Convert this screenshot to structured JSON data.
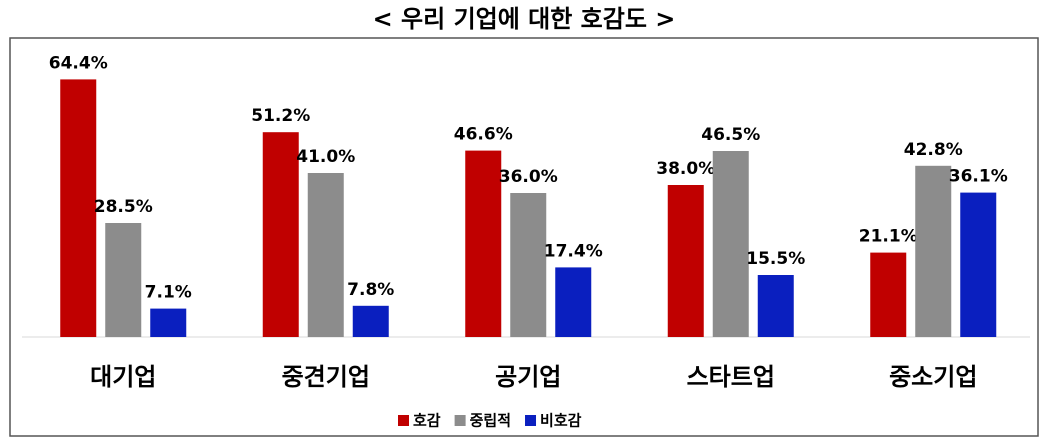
{
  "chart_data": {
    "type": "bar",
    "title": "< 우리 기업에 대한 호감도 >",
    "categories": [
      "대기업",
      "중견기업",
      "공기업",
      "스타트업",
      "중소기업"
    ],
    "series": [
      {
        "name": "호감",
        "color": "#c00000",
        "values": [
          64.4,
          51.2,
          46.6,
          38.0,
          21.1
        ],
        "value_labels": [
          "64.4%",
          "51.2%",
          "46.6%",
          "38.0%",
          "21.1%"
        ]
      },
      {
        "name": "중립적",
        "color": "#8c8c8c",
        "values": [
          28.5,
          41.0,
          36.0,
          46.5,
          42.8
        ],
        "value_labels": [
          "28.5%",
          "41.0%",
          "36.0%",
          "46.5%",
          "42.8%"
        ]
      },
      {
        "name": "비호감",
        "color": "#0a1fbf",
        "values": [
          7.1,
          7.8,
          17.4,
          15.5,
          36.1
        ],
        "value_labels": [
          "7.1%",
          "7.8%",
          "17.4%",
          "15.5%",
          "36.1%"
        ]
      }
    ]
  }
}
